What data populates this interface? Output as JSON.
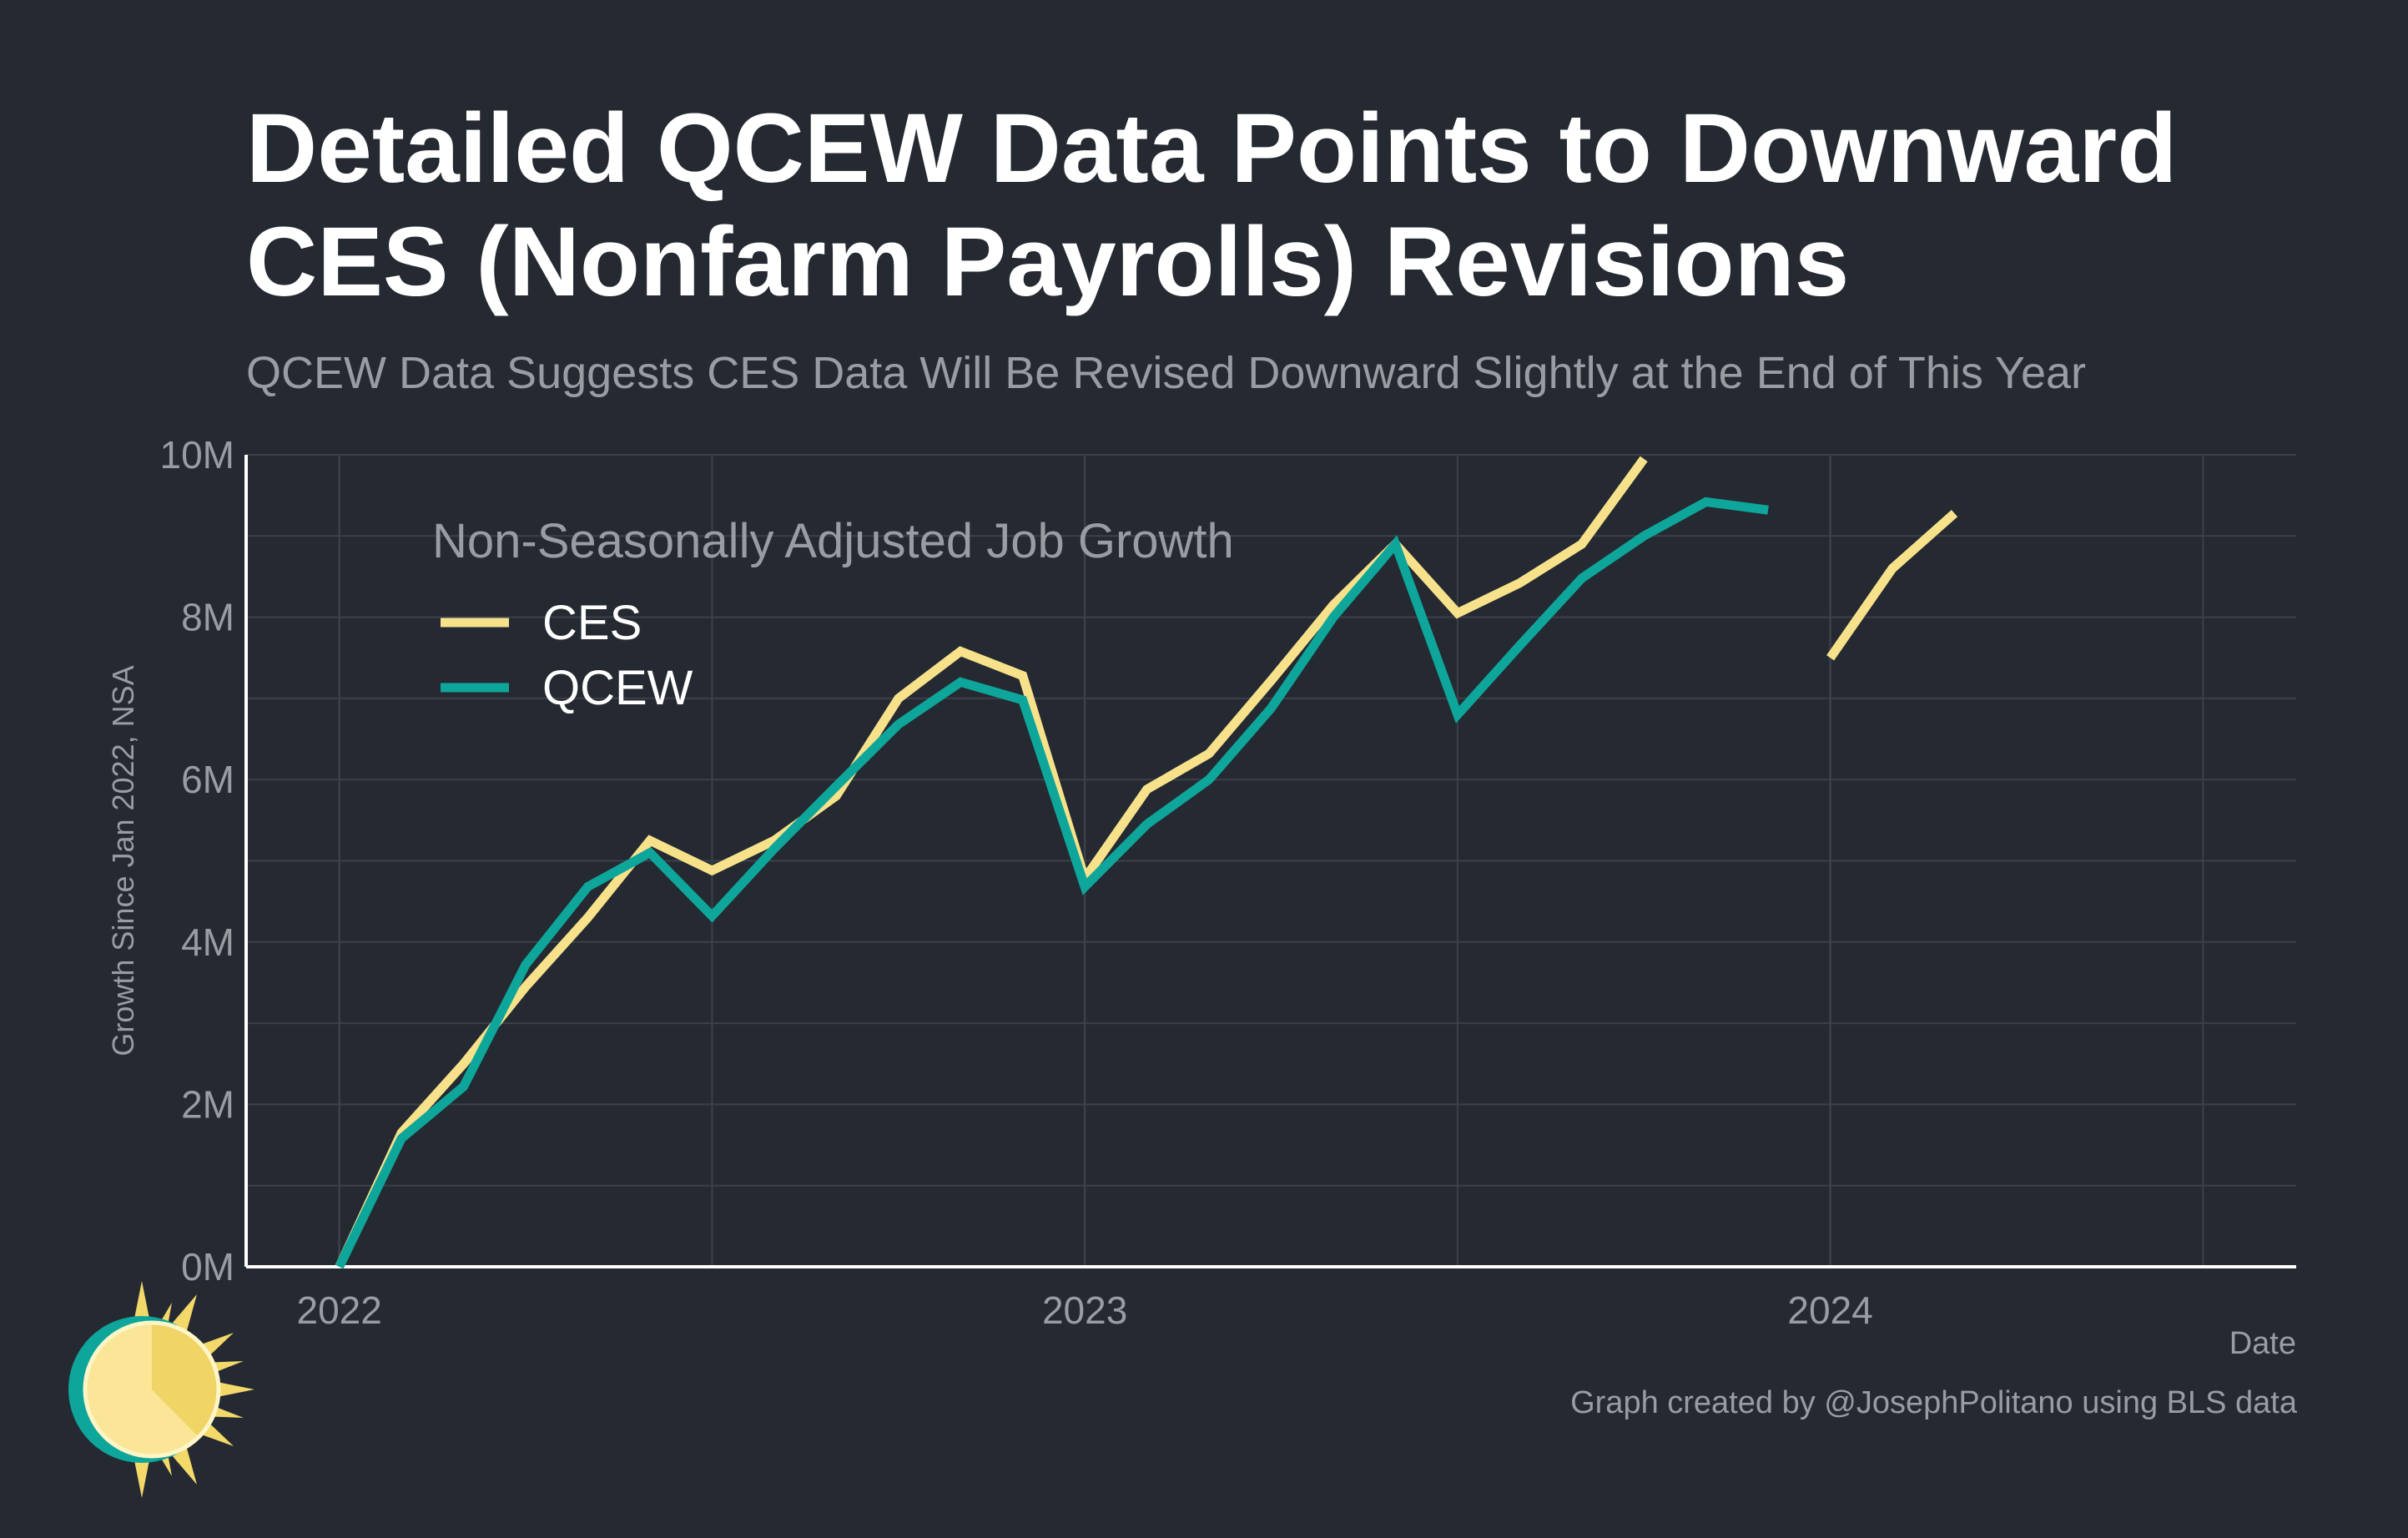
{
  "title": "Detailed QCEW Data Points to Downward CES (Nonfarm Payrolls) Revisions",
  "subtitle": "QCEW Data Suggests CES Data Will Be Revised Downward Slightly at the End of This Year",
  "caption": "Graph created by @JosephPolitano using BLS data",
  "colors": {
    "background": "#252931",
    "ces": "#f7e28b",
    "qcew": "#0ea59a",
    "grid": "#3c4048",
    "axis": "#ffffff",
    "muted": "#9a9ca3"
  },
  "chart_data": {
    "type": "line",
    "xlabel": "Date",
    "ylabel": "Growth Since Jan 2022, NSA",
    "xlim": [
      2021.875,
      2024.625
    ],
    "ylim": [
      0,
      10
    ],
    "x_ticks": [
      {
        "value": 2022,
        "label": "2022"
      },
      {
        "value": 2023,
        "label": "2023"
      },
      {
        "value": 2024,
        "label": "2024"
      }
    ],
    "y_ticks": [
      {
        "value": 0,
        "label": "0M"
      },
      {
        "value": 2,
        "label": "2M"
      },
      {
        "value": 4,
        "label": "4M"
      },
      {
        "value": 6,
        "label": "6M"
      },
      {
        "value": 8,
        "label": "8M"
      },
      {
        "value": 10,
        "label": "10M"
      }
    ],
    "grid": true,
    "legend": {
      "title": "Non-Seasonally Adjusted Job Growth",
      "placement": "top-left"
    },
    "series": [
      {
        "name": "CES",
        "color": "#f7e28b",
        "segments": [
          [
            [
              "2022-01",
              0
            ],
            [
              "2022-02",
              1.65
            ],
            [
              "2022-03",
              2.5
            ],
            [
              "2022-04",
              3.45
            ],
            [
              "2022-05",
              4.3
            ],
            [
              "2022-06",
              5.25
            ],
            [
              "2022-07",
              4.88
            ],
            [
              "2022-08",
              5.25
            ],
            [
              "2022-09",
              5.8
            ],
            [
              "2022-10",
              7.0
            ],
            [
              "2022-11",
              7.58
            ],
            [
              "2022-12",
              7.28
            ],
            [
              "2023-01",
              4.78
            ],
            [
              "2023-02",
              5.88
            ],
            [
              "2023-03",
              6.32
            ],
            [
              "2023-04",
              7.22
            ],
            [
              "2023-05",
              8.15
            ],
            [
              "2023-06",
              8.9
            ],
            [
              "2023-07",
              8.05
            ],
            [
              "2023-08",
              8.42
            ],
            [
              "2023-09",
              8.9
            ],
            [
              "2023-10",
              9.95
            ]
          ],
          [
            [
              "2024-01",
              7.5
            ],
            [
              "2024-02",
              8.6
            ],
            [
              "2024-03",
              9.28
            ]
          ]
        ]
      },
      {
        "name": "QCEW",
        "color": "#0ea59a",
        "segments": [
          [
            [
              "2022-01",
              0
            ],
            [
              "2022-02",
              1.58
            ],
            [
              "2022-03",
              2.22
            ],
            [
              "2022-04",
              3.72
            ],
            [
              "2022-05",
              4.68
            ],
            [
              "2022-06",
              5.1
            ],
            [
              "2022-07",
              4.32
            ],
            [
              "2022-08",
              5.15
            ],
            [
              "2022-09",
              5.92
            ],
            [
              "2022-10",
              6.68
            ],
            [
              "2022-11",
              7.2
            ],
            [
              "2022-12",
              6.98
            ],
            [
              "2023-01",
              4.68
            ],
            [
              "2023-02",
              5.45
            ],
            [
              "2023-03",
              6.0
            ],
            [
              "2023-04",
              6.88
            ],
            [
              "2023-05",
              8.0
            ],
            [
              "2023-06",
              8.9
            ],
            [
              "2023-07",
              6.8
            ],
            [
              "2023-08",
              7.65
            ],
            [
              "2023-09",
              8.48
            ],
            [
              "2023-10",
              9.0
            ],
            [
              "2023-11",
              9.42
            ],
            [
              "2023-12",
              9.32
            ]
          ]
        ]
      }
    ]
  }
}
